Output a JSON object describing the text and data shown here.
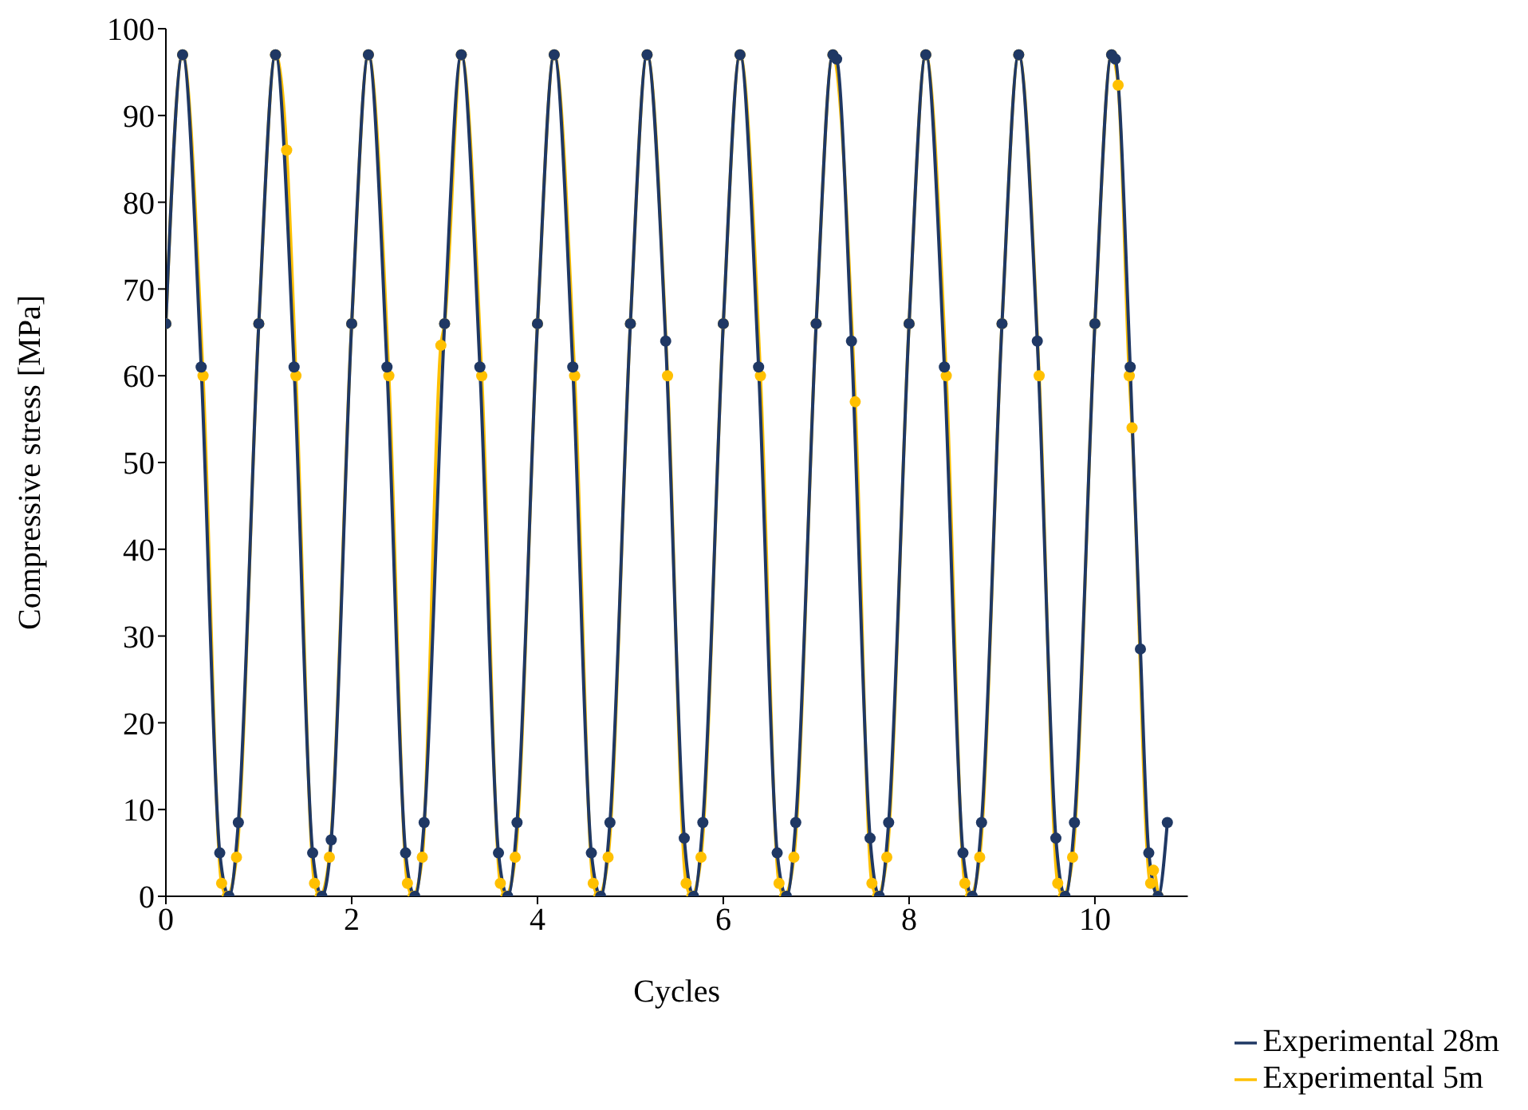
{
  "chart_data": {
    "type": "line",
    "xlabel": "Cycles",
    "ylabel": "Compressive stress [MPa]",
    "xlim": [
      0,
      11
    ],
    "xticks": [
      0,
      2,
      4,
      6,
      8,
      10
    ],
    "ylim": [
      0,
      100
    ],
    "yticks": [
      0,
      10,
      20,
      30,
      40,
      50,
      60,
      70,
      80,
      90,
      100
    ],
    "grid": false,
    "legend": "bottom right",
    "marker": "circle",
    "line_style": "solid",
    "series": [
      {
        "name": "Experimental 5m",
        "color": "#ffc000",
        "x": [
          0,
          0.18,
          0.4,
          0.6,
          0.66,
          0.76,
          1,
          1.18,
          1.3,
          1.4,
          1.6,
          1.66,
          1.76,
          2,
          2.18,
          2.4,
          2.6,
          2.66,
          2.76,
          2.96,
          3,
          3.18,
          3.4,
          3.6,
          3.66,
          3.76,
          4,
          4.18,
          4.4,
          4.6,
          4.66,
          4.76,
          5,
          5.18,
          5.4,
          5.6,
          5.66,
          5.76,
          6,
          6.18,
          6.4,
          6.6,
          6.66,
          6.76,
          7,
          7.18,
          7.42,
          7.6,
          7.66,
          7.76,
          8,
          8.18,
          8.4,
          8.6,
          8.66,
          8.76,
          9,
          9.18,
          9.4,
          9.6,
          9.66,
          9.76,
          10,
          10.18,
          10.25,
          10.37,
          10.4,
          10.6,
          10.63,
          10.68
        ],
        "values": [
          66,
          97,
          60,
          1.5,
          0,
          4.5,
          66,
          97,
          86,
          60,
          1.5,
          0,
          4.5,
          66,
          97,
          60,
          1.5,
          0,
          4.5,
          63.5,
          66,
          97,
          60,
          1.5,
          0,
          4.5,
          66,
          97,
          60,
          1.5,
          0,
          4.5,
          66,
          97,
          60,
          1.5,
          0,
          4.5,
          66,
          97,
          60,
          1.5,
          0,
          4.5,
          66,
          97,
          57,
          1.5,
          0,
          4.5,
          66,
          97,
          60,
          1.5,
          0,
          4.5,
          66,
          97,
          60,
          1.5,
          0,
          4.5,
          66,
          97,
          93.5,
          60,
          54,
          1.5,
          3,
          0
        ]
      },
      {
        "name": "Experimental 28m",
        "color": "#1f3864",
        "x": [
          0,
          0.18,
          0.38,
          0.58,
          0.68,
          0.78,
          1,
          1.18,
          1.38,
          1.58,
          1.68,
          1.78,
          2,
          2.18,
          2.38,
          2.58,
          2.68,
          2.78,
          3,
          3.18,
          3.38,
          3.58,
          3.68,
          3.78,
          4,
          4.18,
          4.38,
          4.58,
          4.68,
          4.78,
          5,
          5.18,
          5.38,
          5.58,
          5.68,
          5.78,
          6,
          6.18,
          6.38,
          6.58,
          6.68,
          6.78,
          7,
          7.18,
          7.22,
          7.38,
          7.58,
          7.68,
          7.78,
          8,
          8.18,
          8.38,
          8.58,
          8.68,
          8.78,
          9,
          9.18,
          9.38,
          9.58,
          9.68,
          9.78,
          10,
          10.18,
          10.22,
          10.38,
          10.49,
          10.58,
          10.68,
          10.78
        ],
        "values": [
          66,
          97,
          61,
          5,
          0,
          8.5,
          66,
          97,
          61,
          5,
          0,
          6.5,
          66,
          97,
          61,
          5,
          0,
          8.5,
          66,
          97,
          61,
          5,
          0,
          8.5,
          66,
          97,
          61,
          5,
          0,
          8.5,
          66,
          97,
          64,
          6.7,
          0,
          8.5,
          66,
          97,
          61,
          5,
          0,
          8.5,
          66,
          97,
          96.5,
          64,
          6.7,
          0,
          8.5,
          66,
          97,
          61,
          5,
          0,
          8.5,
          66,
          97,
          64,
          6.7,
          0,
          8.5,
          66,
          97,
          96.5,
          61,
          28.5,
          5,
          0,
          8.5
        ]
      }
    ]
  }
}
